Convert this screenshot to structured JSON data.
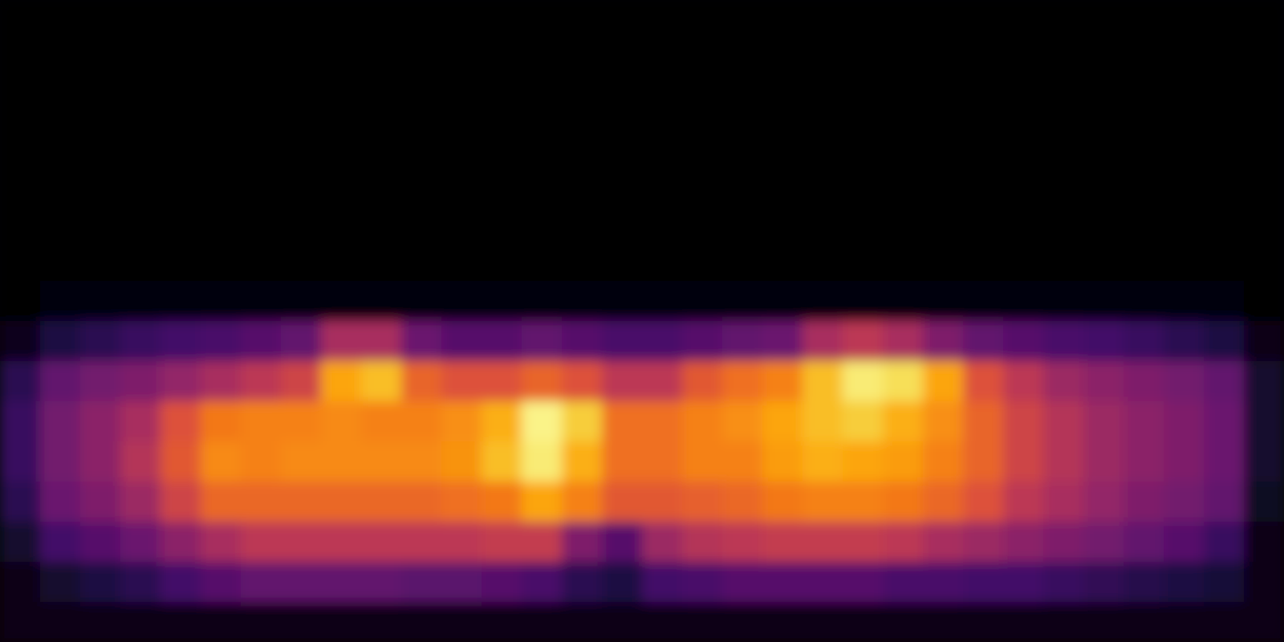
{
  "chart_data": {
    "type": "heatmap",
    "color": "inferno",
    "tick_labels": false,
    "zlim": [
      0,
      1
    ],
    "cells": [
      [
        0,
        0,
        0,
        0,
        0,
        0,
        0,
        0,
        0,
        0,
        0,
        0,
        0,
        0,
        0,
        0,
        0,
        0,
        0,
        0,
        0,
        0,
        0,
        0,
        0,
        0,
        0,
        0,
        0,
        0,
        0,
        0
      ],
      [
        0,
        0,
        0,
        0,
        0,
        0,
        0,
        0,
        0,
        0,
        0,
        0,
        0,
        0,
        0,
        0,
        0,
        0,
        0,
        0,
        0,
        0,
        0,
        0,
        0,
        0,
        0,
        0,
        0,
        0,
        0,
        0
      ],
      [
        0,
        0,
        0,
        0,
        0,
        0,
        0,
        0,
        0,
        0,
        0,
        0,
        0,
        0,
        0,
        0,
        0,
        0,
        0,
        0,
        0,
        0,
        0,
        0,
        0,
        0,
        0,
        0,
        0,
        0,
        0,
        0
      ],
      [
        0,
        0,
        0,
        0,
        0,
        0,
        0,
        0,
        0,
        0,
        0,
        0,
        0,
        0,
        0,
        0,
        0,
        0,
        0,
        0,
        0,
        0,
        0,
        0,
        0,
        0,
        0,
        0,
        0,
        0,
        0,
        0
      ],
      [
        0,
        0,
        0,
        0,
        0,
        0,
        0,
        0,
        0,
        0,
        0,
        0,
        0,
        0,
        0,
        0,
        0,
        0,
        0,
        0,
        0,
        0,
        0,
        0,
        0,
        0,
        0,
        0,
        0,
        0,
        0,
        0
      ],
      [
        0,
        0,
        0,
        0,
        0,
        0,
        0,
        0,
        0,
        0,
        0,
        0,
        0,
        0,
        0,
        0,
        0,
        0,
        0,
        0,
        0,
        0,
        0,
        0,
        0,
        0,
        0,
        0,
        0,
        0,
        0,
        0
      ],
      [
        0,
        0,
        0,
        0,
        0,
        0,
        0,
        0,
        0,
        0,
        0,
        0,
        0,
        0,
        0,
        0,
        0,
        0,
        0,
        0,
        0,
        0,
        0,
        0,
        0,
        0,
        0,
        0,
        0,
        0,
        0,
        0
      ],
      [
        0,
        0.02,
        0.02,
        0.02,
        0.02,
        0.02,
        0.02,
        0.02,
        0.02,
        0.02,
        0.02,
        0.02,
        0.02,
        0.02,
        0.02,
        0.02,
        0.02,
        0.02,
        0.02,
        0.02,
        0.02,
        0.02,
        0.02,
        0.02,
        0.02,
        0.02,
        0.02,
        0.02,
        0.02,
        0.02,
        0.02,
        0
      ],
      [
        0.05,
        0.12,
        0.15,
        0.18,
        0.2,
        0.22,
        0.25,
        0.28,
        0.45,
        0.45,
        0.3,
        0.25,
        0.25,
        0.28,
        0.25,
        0.22,
        0.22,
        0.25,
        0.28,
        0.3,
        0.45,
        0.5,
        0.45,
        0.35,
        0.28,
        0.25,
        0.22,
        0.2,
        0.18,
        0.15,
        0.12,
        0.03
      ],
      [
        0.15,
        0.28,
        0.32,
        0.35,
        0.4,
        0.45,
        0.5,
        0.55,
        0.8,
        0.85,
        0.65,
        0.6,
        0.6,
        0.65,
        0.6,
        0.5,
        0.5,
        0.62,
        0.68,
        0.72,
        0.85,
        0.95,
        0.92,
        0.8,
        0.6,
        0.5,
        0.42,
        0.38,
        0.35,
        0.32,
        0.28,
        0.08
      ],
      [
        0.18,
        0.32,
        0.38,
        0.45,
        0.6,
        0.7,
        0.72,
        0.72,
        0.74,
        0.72,
        0.72,
        0.75,
        0.82,
        0.97,
        0.88,
        0.68,
        0.68,
        0.72,
        0.75,
        0.8,
        0.85,
        0.88,
        0.82,
        0.75,
        0.65,
        0.55,
        0.48,
        0.42,
        0.38,
        0.35,
        0.3,
        0.08
      ],
      [
        0.18,
        0.32,
        0.38,
        0.48,
        0.62,
        0.74,
        0.72,
        0.74,
        0.74,
        0.74,
        0.74,
        0.76,
        0.85,
        0.95,
        0.82,
        0.68,
        0.68,
        0.72,
        0.72,
        0.78,
        0.82,
        0.8,
        0.78,
        0.72,
        0.65,
        0.55,
        0.48,
        0.42,
        0.38,
        0.35,
        0.3,
        0.08
      ],
      [
        0.15,
        0.3,
        0.35,
        0.42,
        0.55,
        0.66,
        0.66,
        0.66,
        0.66,
        0.66,
        0.66,
        0.68,
        0.7,
        0.8,
        0.72,
        0.62,
        0.62,
        0.64,
        0.66,
        0.7,
        0.72,
        0.72,
        0.7,
        0.66,
        0.6,
        0.5,
        0.45,
        0.4,
        0.35,
        0.32,
        0.28,
        0.06
      ],
      [
        0.08,
        0.2,
        0.25,
        0.3,
        0.38,
        0.45,
        0.5,
        0.5,
        0.5,
        0.5,
        0.5,
        0.5,
        0.52,
        0.52,
        0.35,
        0.25,
        0.42,
        0.48,
        0.5,
        0.52,
        0.52,
        0.52,
        0.5,
        0.45,
        0.42,
        0.38,
        0.35,
        0.32,
        0.28,
        0.25,
        0.18,
        0.04
      ],
      [
        0.03,
        0.08,
        0.12,
        0.15,
        0.2,
        0.25,
        0.28,
        0.28,
        0.28,
        0.28,
        0.26,
        0.26,
        0.25,
        0.22,
        0.15,
        0.12,
        0.2,
        0.22,
        0.25,
        0.25,
        0.25,
        0.25,
        0.22,
        0.22,
        0.2,
        0.2,
        0.18,
        0.16,
        0.14,
        0.12,
        0.1,
        0.03
      ],
      [
        0.03,
        0.03,
        0.03,
        0.03,
        0.03,
        0.03,
        0.03,
        0.03,
        0.03,
        0.03,
        0.03,
        0.03,
        0.03,
        0.03,
        0.03,
        0.03,
        0.03,
        0.03,
        0.03,
        0.03,
        0.03,
        0.03,
        0.03,
        0.03,
        0.03,
        0.03,
        0.03,
        0.03,
        0.03,
        0.03,
        0.03,
        0.03
      ]
    ]
  }
}
